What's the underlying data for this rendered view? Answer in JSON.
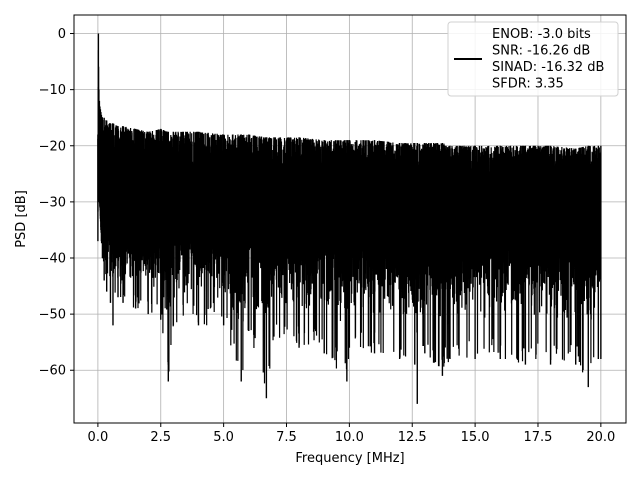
{
  "chart_data": {
    "type": "line",
    "title": "",
    "xlabel": "Frequency [MHz]",
    "ylabel": "PSD [dB]",
    "xlim": [
      -0.95,
      21.0
    ],
    "ylim": [
      -69.4,
      3.3
    ],
    "xticks": [
      0.0,
      2.5,
      5.0,
      7.5,
      10.0,
      12.5,
      15.0,
      17.5,
      20.0
    ],
    "xtick_labels": [
      "0.0",
      "2.5",
      "5.0",
      "7.5",
      "10.0",
      "12.5",
      "15.0",
      "17.5",
      "20.0"
    ],
    "yticks": [
      0,
      -10,
      -20,
      -30,
      -40,
      -50,
      -60
    ],
    "ytick_labels": [
      "0",
      "−10",
      "−20",
      "−30",
      "−40",
      "−50",
      "−60"
    ],
    "grid": true,
    "legend_position": "top-right",
    "series": [
      {
        "name": "ENOB: -3.0 bits\nSNR: -16.26 dB\nSINAD: -16.32 dB\nSFDR: 3.35",
        "color": "#000000",
        "x": [
          0.0,
          0.02,
          0.04,
          0.06,
          0.08,
          0.1,
          0.12,
          0.14,
          0.18,
          0.25,
          0.35,
          0.5,
          0.6,
          0.8,
          1.0,
          1.5,
          2.0,
          2.5,
          2.8,
          3.0,
          4.0,
          5.0,
          5.7,
          6.0,
          6.7,
          7.0,
          8.0,
          9.0,
          9.9,
          10.0,
          11.0,
          12.0,
          12.6,
          12.7,
          13.0,
          13.7,
          14.0,
          15.0,
          16.0,
          17.0,
          18.0,
          19.0,
          19.5,
          19.9,
          20.0
        ],
        "y_max": [
          -18.0,
          0.0,
          -10.0,
          -12.0,
          -13.0,
          -13.5,
          -14.0,
          -14.5,
          -15.0,
          -15.0,
          -15.5,
          -16.0,
          -16.0,
          -16.5,
          -16.5,
          -17.0,
          -17.5,
          -17.0,
          -17.5,
          -17.5,
          -17.5,
          -18.0,
          -18.0,
          -18.0,
          -18.5,
          -18.5,
          -18.5,
          -19.0,
          -19.0,
          -19.0,
          -19.0,
          -19.5,
          -19.5,
          -19.5,
          -19.5,
          -19.5,
          -20.0,
          -20.0,
          -20.0,
          -20.0,
          -20.0,
          -20.5,
          -20.0,
          -20.0,
          -20.0
        ],
        "y_min": [
          -37.0,
          -30.0,
          -28.0,
          -30.0,
          -31.0,
          -33.0,
          -35.0,
          -37.0,
          -40.0,
          -44.0,
          -46.0,
          -48.0,
          -52.0,
          -47.0,
          -48.0,
          -49.0,
          -50.0,
          -51.0,
          -62.0,
          -52.0,
          -52.0,
          -52.0,
          -62.0,
          -53.0,
          -65.0,
          -54.0,
          -56.0,
          -57.0,
          -62.0,
          -56.0,
          -57.0,
          -58.0,
          -59.0,
          -66.0,
          -57.0,
          -61.0,
          -58.0,
          -58.0,
          -58.0,
          -59.0,
          -59.0,
          -59.0,
          -63.0,
          -58.0,
          -58.0
        ],
        "y_typical_range": [
          -40.0,
          -22.0
        ]
      }
    ]
  }
}
